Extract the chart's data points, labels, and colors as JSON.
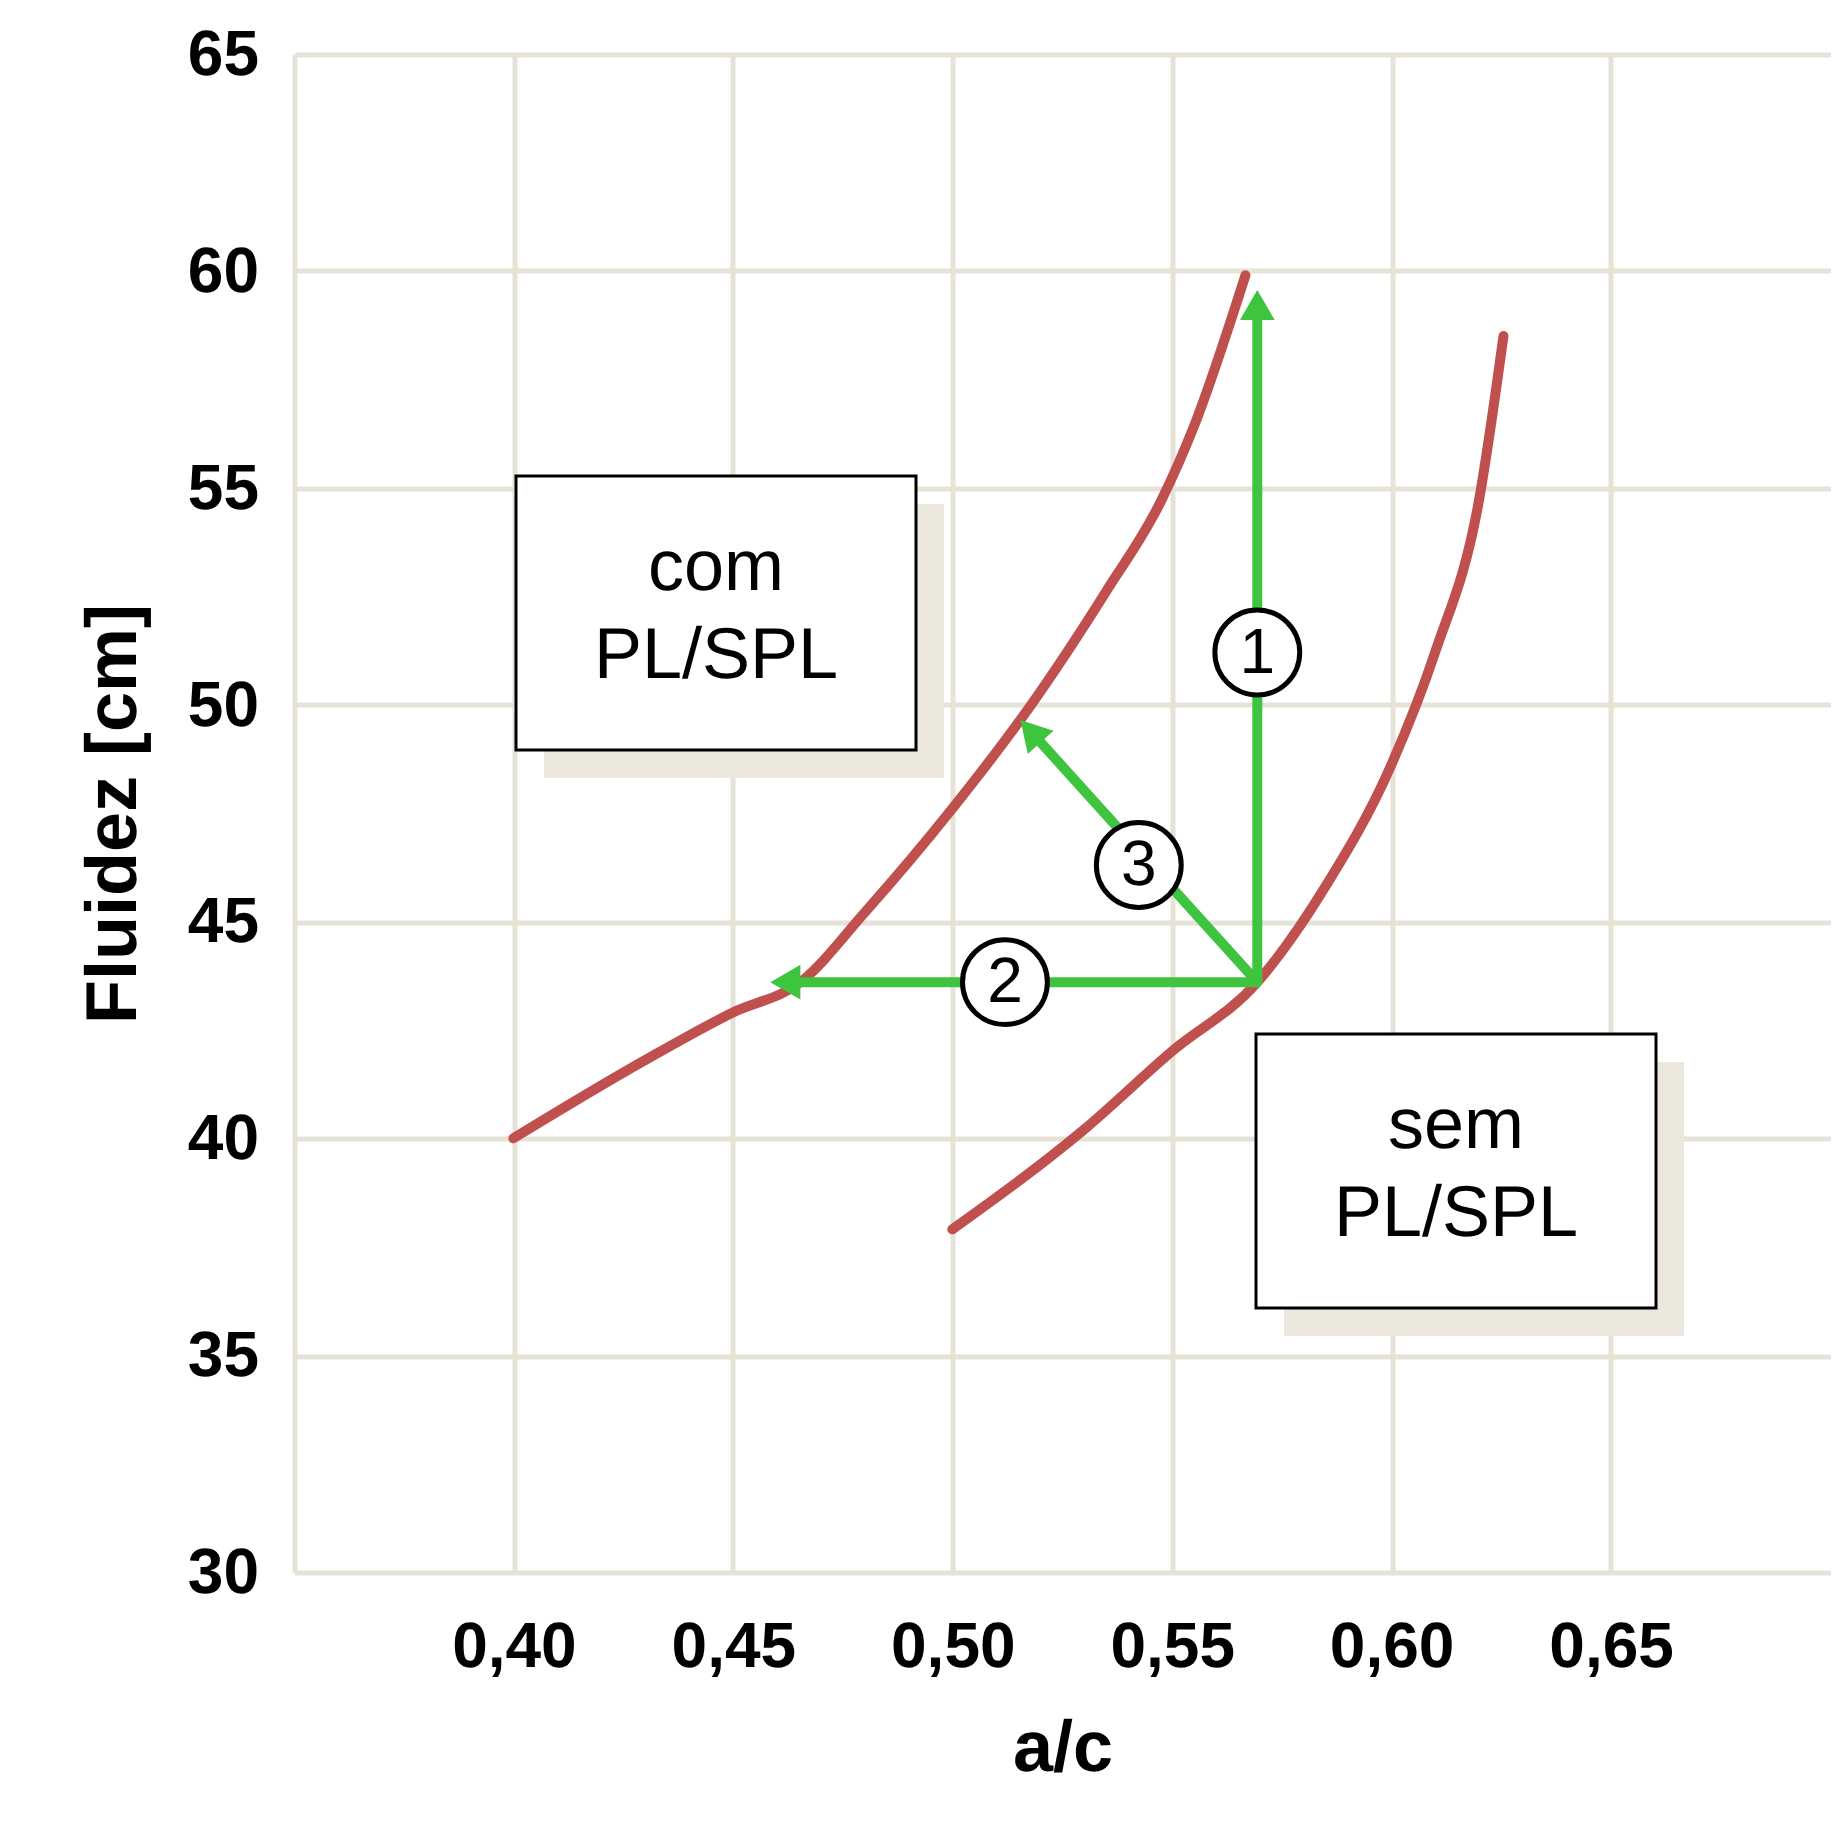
{
  "chart_data": {
    "type": "line",
    "xlabel": "a/c",
    "ylabel": "Fluidez [cm]",
    "xlim": [
      0.35,
      0.7
    ],
    "ylim": [
      30,
      65
    ],
    "xticks": [
      {
        "value": 0.4,
        "label": "0,40"
      },
      {
        "value": 0.45,
        "label": "0,45"
      },
      {
        "value": 0.5,
        "label": "0,50"
      },
      {
        "value": 0.55,
        "label": "0,55"
      },
      {
        "value": 0.6,
        "label": "0,60"
      },
      {
        "value": 0.65,
        "label": "0,65"
      }
    ],
    "yticks": [
      30,
      35,
      40,
      45,
      50,
      55,
      60,
      65
    ],
    "grid": true,
    "line_style": "solid",
    "series": [
      {
        "name": "com\nPL/SPL",
        "color": "#c0504d",
        "x": [
          0.4,
          0.43,
          0.45,
          0.4654,
          0.48,
          0.5,
          0.518,
          0.535,
          0.5476,
          0.555,
          0.5668
        ],
        "values": [
          40.0,
          41.8,
          42.9,
          43.6,
          45.2,
          47.6,
          50.0,
          52.6,
          54.7,
          56.4,
          59.9
        ]
      },
      {
        "name": "sem\nPL/SPL",
        "color": "#c0504d",
        "x": [
          0.5,
          0.53,
          0.55,
          0.5695,
          0.585,
          0.6,
          0.61,
          0.62,
          0.6256
        ],
        "values": [
          37.9,
          40.2,
          42.0,
          43.6,
          45.8,
          48.6,
          51.2,
          54.7,
          58.5
        ]
      },
      {
        "color": "#3ec43e",
        "marker": "triangle",
        "x": [
          0.5695,
          0.5695
        ],
        "values": [
          43.6,
          59.1
        ]
      },
      {
        "color": "#3ec43e",
        "marker": "triangle",
        "x": [
          0.5695,
          0.4631
        ],
        "values": [
          43.6,
          43.6
        ]
      },
      {
        "color": "#3ec43e",
        "marker": "triangle",
        "x": [
          0.5695,
          0.5186
        ],
        "values": [
          43.6,
          49.3
        ]
      }
    ],
    "annotations": [
      {
        "text": "1",
        "x": 0.5695,
        "y": 51.2
      },
      {
        "text": "2",
        "x": 0.512,
        "y": 43.6
      },
      {
        "text": "3",
        "x": 0.5425,
        "y": 46.3
      }
    ]
  }
}
